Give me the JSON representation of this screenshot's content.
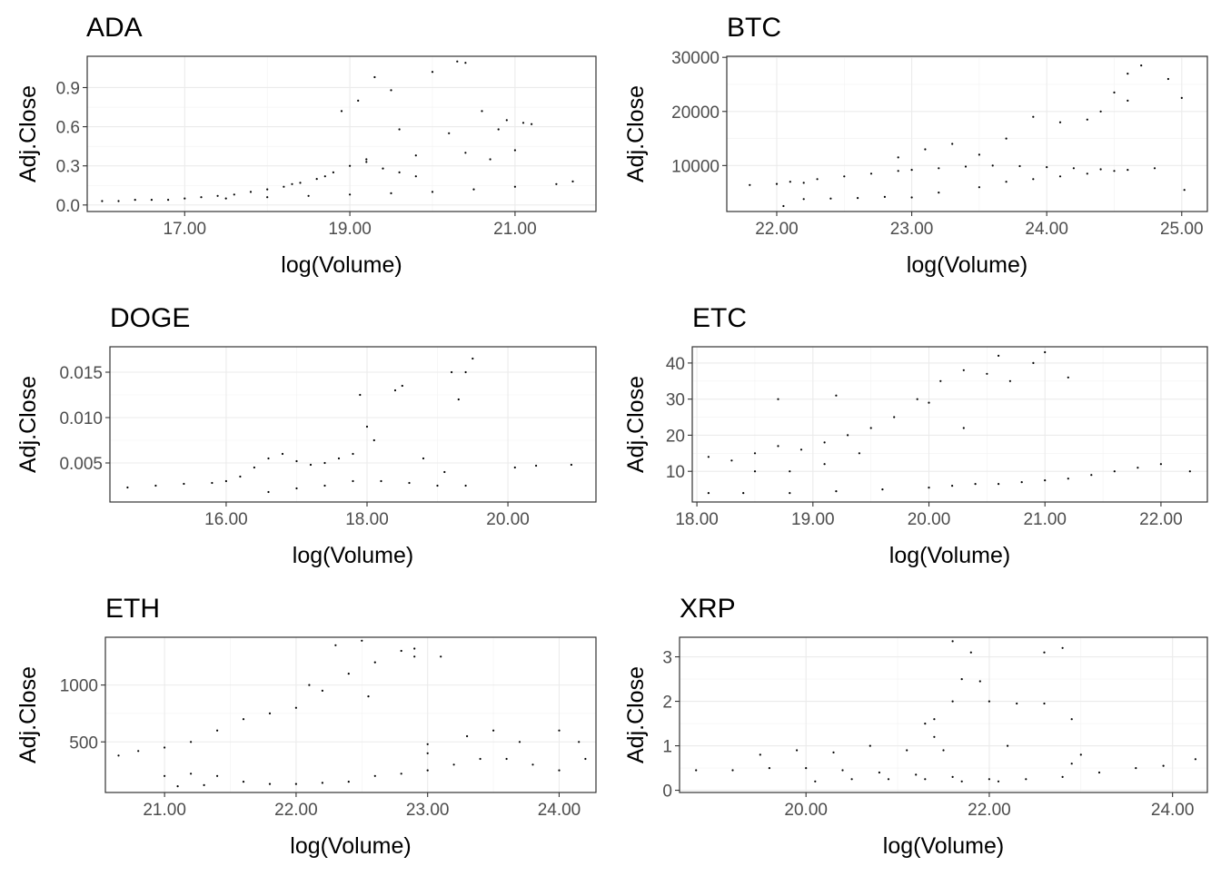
{
  "chart_data": [
    {
      "type": "scatter",
      "title": "ADA",
      "xlabel": "log(Volume)",
      "ylabel": "Adj.Close",
      "xlim": [
        15.82,
        21.98
      ],
      "ylim": [
        -0.05,
        1.14
      ],
      "xticks": [
        17,
        19,
        21
      ],
      "xtick_labels": [
        "17.00",
        "19.00",
        "21.00"
      ],
      "yticks": [
        0.0,
        0.3,
        0.6,
        0.9
      ],
      "ytick_labels": [
        "0.0",
        "0.3",
        "0.6",
        "0.9"
      ],
      "grid": true,
      "points": [
        [
          16.0,
          0.03
        ],
        [
          16.2,
          0.03
        ],
        [
          16.4,
          0.04
        ],
        [
          16.6,
          0.04
        ],
        [
          16.8,
          0.04
        ],
        [
          17.0,
          0.05
        ],
        [
          17.2,
          0.06
        ],
        [
          17.4,
          0.07
        ],
        [
          17.6,
          0.08
        ],
        [
          17.8,
          0.1
        ],
        [
          18.0,
          0.12
        ],
        [
          18.2,
          0.14
        ],
        [
          18.4,
          0.17
        ],
        [
          18.6,
          0.2
        ],
        [
          18.8,
          0.25
        ],
        [
          19.0,
          0.3
        ],
        [
          19.2,
          0.35
        ],
        [
          19.4,
          0.28
        ],
        [
          19.6,
          0.25
        ],
        [
          19.8,
          0.22
        ],
        [
          17.5,
          0.05
        ],
        [
          18.0,
          0.06
        ],
        [
          18.5,
          0.07
        ],
        [
          19.0,
          0.08
        ],
        [
          19.5,
          0.09
        ],
        [
          20.0,
          0.1
        ],
        [
          20.5,
          0.12
        ],
        [
          21.0,
          0.14
        ],
        [
          21.5,
          0.16
        ],
        [
          21.7,
          0.18
        ],
        [
          18.9,
          0.72
        ],
        [
          19.1,
          0.8
        ],
        [
          19.3,
          0.98
        ],
        [
          19.5,
          0.88
        ],
        [
          20.0,
          1.02
        ],
        [
          20.3,
          1.1
        ],
        [
          20.4,
          1.09
        ],
        [
          20.9,
          0.65
        ],
        [
          21.1,
          0.63
        ],
        [
          21.2,
          0.62
        ],
        [
          20.6,
          0.72
        ],
        [
          20.8,
          0.58
        ],
        [
          20.2,
          0.55
        ],
        [
          19.6,
          0.58
        ],
        [
          20.4,
          0.4
        ],
        [
          20.7,
          0.35
        ],
        [
          21.0,
          0.42
        ],
        [
          18.3,
          0.16
        ],
        [
          18.7,
          0.22
        ],
        [
          19.2,
          0.33
        ],
        [
          19.8,
          0.38
        ]
      ]
    },
    {
      "type": "scatter",
      "title": "BTC",
      "xlabel": "log(Volume)",
      "ylabel": "Adj.Close",
      "xlim": [
        21.63,
        25.19
      ],
      "ylim": [
        1500,
        30200
      ],
      "xticks": [
        22,
        23,
        24,
        25
      ],
      "xtick_labels": [
        "22.00",
        "23.00",
        "24.00",
        "25.00"
      ],
      "yticks": [
        10000,
        20000,
        30000
      ],
      "ytick_labels": [
        "10000",
        "20000",
        "30000"
      ],
      "grid": true,
      "points": [
        [
          21.8,
          6400
        ],
        [
          22.0,
          6600
        ],
        [
          22.1,
          7000
        ],
        [
          22.2,
          6800
        ],
        [
          22.3,
          7500
        ],
        [
          22.5,
          8000
        ],
        [
          22.7,
          8500
        ],
        [
          22.9,
          9000
        ],
        [
          23.0,
          9200
        ],
        [
          23.2,
          9500
        ],
        [
          23.4,
          9800
        ],
        [
          23.6,
          10000
        ],
        [
          23.8,
          9900
        ],
        [
          24.0,
          9700
        ],
        [
          24.2,
          9500
        ],
        [
          24.4,
          9300
        ],
        [
          24.6,
          9200
        ],
        [
          24.8,
          9500
        ],
        [
          22.2,
          3800
        ],
        [
          22.4,
          3900
        ],
        [
          22.6,
          4000
        ],
        [
          22.8,
          4200
        ],
        [
          23.0,
          4100
        ],
        [
          23.2,
          5000
        ],
        [
          23.5,
          6000
        ],
        [
          23.7,
          7000
        ],
        [
          23.9,
          7500
        ],
        [
          24.1,
          8000
        ],
        [
          24.3,
          8500
        ],
        [
          24.5,
          9000
        ],
        [
          23.3,
          14000
        ],
        [
          23.5,
          12000
        ],
        [
          23.7,
          15000
        ],
        [
          23.9,
          19000
        ],
        [
          24.1,
          18000
        ],
        [
          24.3,
          18500
        ],
        [
          24.5,
          23500
        ],
        [
          24.6,
          27000
        ],
        [
          24.7,
          28500
        ],
        [
          24.9,
          26000
        ],
        [
          25.0,
          22500
        ],
        [
          24.4,
          20000
        ],
        [
          24.6,
          22000
        ],
        [
          23.1,
          13000
        ],
        [
          22.9,
          11500
        ],
        [
          25.02,
          5500
        ],
        [
          22.05,
          2500
        ]
      ]
    },
    {
      "type": "scatter",
      "title": "DOGE",
      "xlabel": "log(Volume)",
      "ylabel": "Adj.Close",
      "xlim": [
        14.35,
        21.25
      ],
      "ylim": [
        0.0007,
        0.0178
      ],
      "xticks": [
        16,
        18,
        20
      ],
      "xtick_labels": [
        "16.00",
        "18.00",
        "20.00"
      ],
      "yticks": [
        0.005,
        0.01,
        0.015
      ],
      "ytick_labels": [
        "0.005",
        "0.010",
        "0.015"
      ],
      "grid": true,
      "points": [
        [
          14.6,
          0.0023
        ],
        [
          15.0,
          0.0025
        ],
        [
          15.4,
          0.0027
        ],
        [
          15.8,
          0.0028
        ],
        [
          16.0,
          0.003
        ],
        [
          16.2,
          0.0035
        ],
        [
          16.4,
          0.0045
        ],
        [
          16.6,
          0.0055
        ],
        [
          16.8,
          0.006
        ],
        [
          17.0,
          0.0052
        ],
        [
          17.2,
          0.0048
        ],
        [
          17.4,
          0.005
        ],
        [
          17.6,
          0.0055
        ],
        [
          17.8,
          0.006
        ],
        [
          16.6,
          0.0018
        ],
        [
          17.0,
          0.0022
        ],
        [
          17.4,
          0.0025
        ],
        [
          17.8,
          0.003
        ],
        [
          18.2,
          0.003
        ],
        [
          18.6,
          0.0028
        ],
        [
          19.0,
          0.0025
        ],
        [
          19.4,
          0.0025
        ],
        [
          17.9,
          0.0125
        ],
        [
          18.0,
          0.009
        ],
        [
          18.1,
          0.0075
        ],
        [
          18.4,
          0.013
        ],
        [
          18.5,
          0.0135
        ],
        [
          19.3,
          0.012
        ],
        [
          19.2,
          0.015
        ],
        [
          19.5,
          0.0165
        ],
        [
          19.4,
          0.015
        ],
        [
          20.1,
          0.0045
        ],
        [
          20.4,
          0.0047
        ],
        [
          20.9,
          0.0048
        ],
        [
          18.8,
          0.0055
        ],
        [
          19.1,
          0.004
        ]
      ]
    },
    {
      "type": "scatter",
      "title": "ETC",
      "xlabel": "log(Volume)",
      "ylabel": "Adj.Close",
      "xlim": [
        17.96,
        22.4
      ],
      "ylim": [
        1.5,
        44.5
      ],
      "xticks": [
        18,
        19,
        20,
        21,
        22
      ],
      "xtick_labels": [
        "18.00",
        "19.00",
        "20.00",
        "21.00",
        "22.00"
      ],
      "yticks": [
        10,
        20,
        30,
        40
      ],
      "ytick_labels": [
        "10",
        "20",
        "30",
        "40"
      ],
      "grid": true,
      "points": [
        [
          18.1,
          14
        ],
        [
          18.3,
          13
        ],
        [
          18.5,
          15
        ],
        [
          18.7,
          17
        ],
        [
          18.9,
          16
        ],
        [
          19.1,
          18
        ],
        [
          19.3,
          20
        ],
        [
          19.5,
          22
        ],
        [
          19.7,
          25
        ],
        [
          19.9,
          30
        ],
        [
          20.1,
          35
        ],
        [
          20.3,
          38
        ],
        [
          20.5,
          37
        ],
        [
          20.7,
          35
        ],
        [
          20.9,
          40
        ],
        [
          21.2,
          36
        ],
        [
          18.5,
          10
        ],
        [
          18.8,
          10
        ],
        [
          19.1,
          12
        ],
        [
          19.4,
          15
        ],
        [
          18.4,
          4
        ],
        [
          18.8,
          4
        ],
        [
          19.2,
          4.5
        ],
        [
          19.6,
          5
        ],
        [
          20.0,
          5.5
        ],
        [
          20.2,
          6
        ],
        [
          20.4,
          6.5
        ],
        [
          20.6,
          6.5
        ],
        [
          20.8,
          7
        ],
        [
          21.0,
          7.5
        ],
        [
          21.2,
          8
        ],
        [
          21.4,
          9
        ],
        [
          21.6,
          10
        ],
        [
          21.8,
          11
        ],
        [
          22.0,
          12
        ],
        [
          22.25,
          10
        ],
        [
          20.6,
          42
        ],
        [
          21.0,
          43
        ],
        [
          20.3,
          22
        ],
        [
          20.0,
          29
        ],
        [
          19.2,
          31
        ],
        [
          18.7,
          30
        ],
        [
          18.1,
          4
        ]
      ]
    },
    {
      "type": "scatter",
      "title": "ETH",
      "xlabel": "log(Volume)",
      "ylabel": "Adj.Close",
      "xlim": [
        20.55,
        24.28
      ],
      "ylim": [
        55,
        1420
      ],
      "xticks": [
        21,
        22,
        23,
        24
      ],
      "xtick_labels": [
        "21.00",
        "22.00",
        "23.00",
        "24.00"
      ],
      "yticks": [
        500,
        1000
      ],
      "ytick_labels": [
        "500",
        "1000"
      ],
      "grid": true,
      "points": [
        [
          20.65,
          380
        ],
        [
          20.8,
          420
        ],
        [
          21.0,
          450
        ],
        [
          21.2,
          500
        ],
        [
          21.4,
          600
        ],
        [
          21.6,
          700
        ],
        [
          21.8,
          750
        ],
        [
          22.0,
          800
        ],
        [
          22.2,
          950
        ],
        [
          22.4,
          1100
        ],
        [
          22.6,
          1200
        ],
        [
          22.8,
          1300
        ],
        [
          22.9,
          1250
        ],
        [
          21.0,
          200
        ],
        [
          21.2,
          220
        ],
        [
          21.4,
          200
        ],
        [
          21.6,
          150
        ],
        [
          21.8,
          130
        ],
        [
          22.0,
          130
        ],
        [
          22.2,
          140
        ],
        [
          22.4,
          150
        ],
        [
          22.6,
          200
        ],
        [
          22.8,
          220
        ],
        [
          23.0,
          250
        ],
        [
          23.2,
          300
        ],
        [
          23.4,
          350
        ],
        [
          23.6,
          350
        ],
        [
          23.8,
          300
        ],
        [
          24.0,
          250
        ],
        [
          23.0,
          400
        ],
        [
          23.3,
          550
        ],
        [
          23.5,
          600
        ],
        [
          23.7,
          500
        ],
        [
          24.0,
          600
        ],
        [
          24.15,
          500
        ],
        [
          22.3,
          1350
        ],
        [
          22.5,
          1390
        ],
        [
          22.9,
          1320
        ],
        [
          23.1,
          1250
        ],
        [
          22.1,
          1000
        ],
        [
          22.55,
          900
        ],
        [
          23.0,
          480
        ],
        [
          24.2,
          350
        ],
        [
          21.1,
          110
        ],
        [
          21.3,
          120
        ]
      ]
    },
    {
      "type": "scatter",
      "title": "XRP",
      "xlabel": "log(Volume)",
      "ylabel": "Adj.Close",
      "xlim": [
        18.62,
        24.38
      ],
      "ylim": [
        -0.05,
        3.44
      ],
      "xticks": [
        20,
        22,
        24
      ],
      "xtick_labels": [
        "20.00",
        "22.00",
        "24.00"
      ],
      "yticks": [
        0,
        1,
        2,
        3
      ],
      "ytick_labels": [
        "0",
        "1",
        "2",
        "3"
      ],
      "grid": true,
      "points": [
        [
          18.8,
          0.45
        ],
        [
          19.2,
          0.45
        ],
        [
          19.6,
          0.5
        ],
        [
          20.0,
          0.5
        ],
        [
          20.4,
          0.45
        ],
        [
          20.8,
          0.4
        ],
        [
          21.2,
          0.35
        ],
        [
          21.6,
          0.3
        ],
        [
          22.0,
          0.25
        ],
        [
          22.4,
          0.25
        ],
        [
          22.8,
          0.3
        ],
        [
          23.2,
          0.4
        ],
        [
          23.6,
          0.5
        ],
        [
          23.9,
          0.55
        ],
        [
          20.1,
          0.2
        ],
        [
          20.5,
          0.25
        ],
        [
          20.9,
          0.25
        ],
        [
          21.3,
          0.25
        ],
        [
          21.7,
          0.2
        ],
        [
          22.1,
          0.2
        ],
        [
          19.5,
          0.8
        ],
        [
          19.9,
          0.9
        ],
        [
          20.3,
          0.85
        ],
        [
          20.7,
          1.0
        ],
        [
          21.1,
          0.9
        ],
        [
          21.5,
          0.9
        ],
        [
          21.3,
          1.5
        ],
        [
          21.4,
          1.6
        ],
        [
          21.6,
          2.0
        ],
        [
          21.7,
          2.5
        ],
        [
          21.6,
          3.35
        ],
        [
          21.8,
          3.1
        ],
        [
          21.9,
          2.45
        ],
        [
          22.0,
          2.0
        ],
        [
          22.3,
          1.95
        ],
        [
          22.6,
          1.95
        ],
        [
          22.6,
          3.1
        ],
        [
          22.8,
          3.2
        ],
        [
          22.9,
          1.6
        ],
        [
          22.9,
          0.6
        ],
        [
          23.0,
          0.8
        ],
        [
          24.25,
          0.7
        ],
        [
          22.2,
          1.0
        ],
        [
          21.4,
          1.2
        ]
      ]
    }
  ]
}
